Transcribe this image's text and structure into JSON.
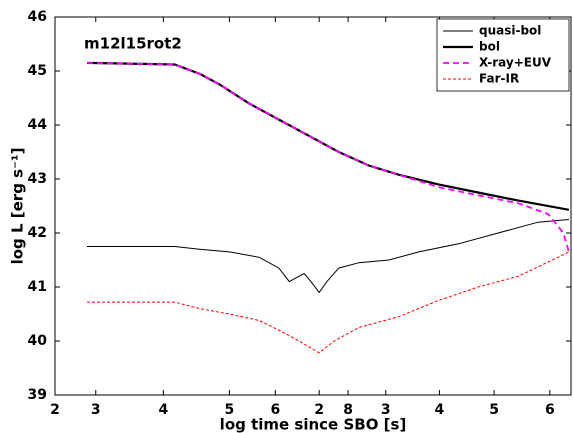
{
  "chart_data": {
    "type": "line",
    "annotation": "m12l15rot2",
    "xlabel": "log time since SBO [s]",
    "ylabel": "log L [erg s⁻¹]",
    "xlim": [
      0,
      100
    ],
    "ylim": [
      39,
      46
    ],
    "xticks": [
      {
        "value": 0,
        "label": "2"
      },
      {
        "value": 7.9,
        "label": "3"
      },
      {
        "value": 21.0,
        "label": "4"
      },
      {
        "value": 33.8,
        "label": "5"
      },
      {
        "value": 42.7,
        "label": "6"
      },
      {
        "value": 51.2,
        "label": "2"
      },
      {
        "value": 56.8,
        "label": "8"
      },
      {
        "value": 64.1,
        "label": "3"
      },
      {
        "value": 74.5,
        "label": "4"
      },
      {
        "value": 85.1,
        "label": "5"
      },
      {
        "value": 95.9,
        "label": "6"
      }
    ],
    "yticks": [
      39,
      40,
      41,
      42,
      43,
      44,
      45,
      46
    ],
    "legend": "upper right",
    "series": [
      {
        "name": "quasi-bol",
        "color": "#000000",
        "width": 1,
        "dash": "none",
        "x": [
          6.2,
          23.2,
          28.0,
          33.8,
          39.6,
          43.4,
          45.4,
          47.3,
          48.3,
          49.6,
          51.2,
          52.7,
          55.0,
          58.9,
          64.7,
          70.5,
          78.2,
          85.9,
          93.6,
          99.6
        ],
        "values": [
          41.75,
          41.75,
          41.7,
          41.65,
          41.55,
          41.35,
          41.1,
          41.2,
          41.25,
          41.1,
          40.9,
          41.1,
          41.35,
          41.45,
          41.5,
          41.65,
          41.8,
          42.0,
          42.2,
          42.25
        ]
      },
      {
        "name": "bol",
        "color": "#000000",
        "width": 2.2,
        "dash": "none",
        "x": [
          6.2,
          23.2,
          28.0,
          31.9,
          37.6,
          43.4,
          49.2,
          55.0,
          60.8,
          66.6,
          74.3,
          82.0,
          89.8,
          99.6
        ],
        "values": [
          45.15,
          45.12,
          44.95,
          44.75,
          44.4,
          44.1,
          43.8,
          43.5,
          43.25,
          43.08,
          42.9,
          42.75,
          42.6,
          42.43
        ]
      },
      {
        "name": "X-ray+EUV",
        "color": "#ff00ff",
        "width": 1.8,
        "dash": "6,4",
        "x": [
          6.2,
          23.2,
          28.0,
          31.9,
          37.6,
          43.4,
          49.2,
          55.0,
          60.8,
          66.6,
          74.3,
          82.0,
          89.8,
          95.6,
          98.5,
          99.6
        ],
        "values": [
          45.15,
          45.12,
          44.95,
          44.75,
          44.4,
          44.1,
          43.8,
          43.5,
          43.25,
          43.08,
          42.85,
          42.7,
          42.55,
          42.35,
          42.0,
          41.65
        ]
      },
      {
        "name": "Far-IR",
        "color": "#ff0000",
        "width": 1,
        "dash": "3,2",
        "x": [
          6.2,
          23.2,
          28.0,
          33.8,
          39.6,
          43.4,
          47.3,
          51.2,
          54.1,
          58.9,
          66.6,
          74.3,
          82.0,
          89.8,
          97.5,
          99.6
        ],
        "values": [
          40.72,
          40.72,
          40.6,
          40.5,
          40.38,
          40.2,
          40.0,
          39.78,
          40.0,
          40.25,
          40.45,
          40.75,
          41.0,
          41.2,
          41.55,
          41.65
        ]
      }
    ]
  }
}
